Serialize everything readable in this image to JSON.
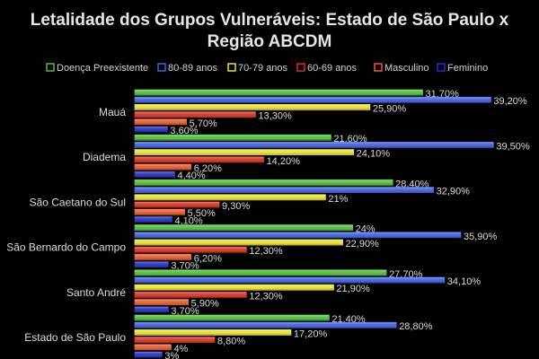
{
  "chart_data": {
    "type": "bar",
    "orientation": "horizontal",
    "title_lines": [
      "Letalidade dos Grupos Vulneráveis: Estado de São Paulo x",
      "Região ABCDM"
    ],
    "categories": [
      "Mauá",
      "Diadema",
      "São Caetano do Sul",
      "São Bernardo do Campo",
      "Santo André",
      "Estado de São Paulo"
    ],
    "xlim": [
      0,
      45
    ],
    "grid": false,
    "legend_position": "top",
    "series": [
      {
        "name": "Doença Preexistente",
        "color": "#4fbf3a",
        "values": [
          31.7,
          21.6,
          28.4,
          24.0,
          27.7,
          21.4
        ],
        "labels": [
          "31,70%",
          "21,60%",
          "28,40%",
          "24%",
          "27,70%",
          "21,40%"
        ]
      },
      {
        "name": "80-89 anos",
        "color": "#3f5fe0",
        "values": [
          39.2,
          39.5,
          32.9,
          35.9,
          34.1,
          28.8
        ],
        "labels": [
          "39,20%",
          "39,50%",
          "32,90%",
          "35,90%",
          "34,10%",
          "28,80%"
        ]
      },
      {
        "name": "70-79 anos",
        "color": "#e8e030",
        "values": [
          25.9,
          24.1,
          21.0,
          22.9,
          21.9,
          17.2
        ],
        "labels": [
          "25,90%",
          "24,10%",
          "21%",
          "22,90%",
          "21,90%",
          "17,20%"
        ]
      },
      {
        "name": "60-69 anos",
        "color": "#d93020",
        "values": [
          13.3,
          14.2,
          9.3,
          12.3,
          12.3,
          8.8
        ],
        "labels": [
          "13,30%",
          "14,20%",
          "9,30%",
          "12,30%",
          "12,30%",
          "8,80%"
        ]
      },
      {
        "name": "Masculino",
        "color": "#e85a2a",
        "values": [
          5.7,
          6.2,
          5.5,
          6.2,
          5.9,
          4.0
        ],
        "labels": [
          "5,70%",
          "6,20%",
          "5,50%",
          "6,20%",
          "5,90%",
          "4%"
        ]
      },
      {
        "name": "Feminino",
        "color": "#2030c0",
        "values": [
          3.6,
          4.4,
          4.1,
          3.7,
          3.7,
          3.0
        ],
        "labels": [
          "3,60%",
          "4,40%",
          "4,10%",
          "3,70%",
          "3,70%",
          "3%"
        ]
      }
    ]
  }
}
